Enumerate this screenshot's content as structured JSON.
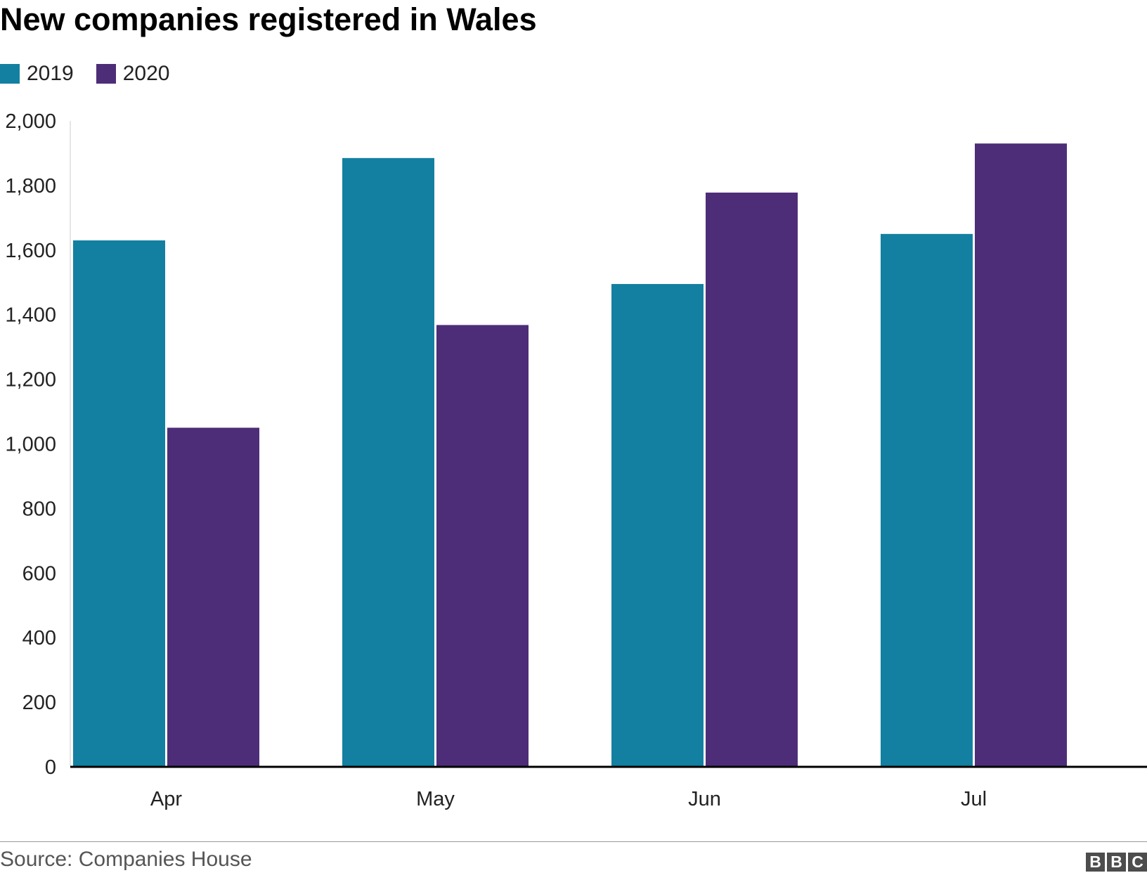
{
  "chart_data": {
    "type": "bar",
    "title": "New companies registered in Wales",
    "xlabel": "",
    "ylabel": "",
    "categories": [
      "Apr",
      "May",
      "Jun",
      "Jul"
    ],
    "series": [
      {
        "name": "2019",
        "color": "#1380a1",
        "values": [
          1630,
          1885,
          1495,
          1650
        ]
      },
      {
        "name": "2020",
        "color": "#4d2d78",
        "values": [
          1050,
          1368,
          1778,
          1930
        ]
      }
    ],
    "ylim": [
      0,
      2000
    ],
    "yticks": [
      0,
      200,
      400,
      600,
      800,
      1000,
      1200,
      1400,
      1600,
      1800,
      2000
    ],
    "ytick_labels": [
      "0",
      "200",
      "400",
      "600",
      "800",
      "1,000",
      "1,200",
      "1,400",
      "1,600",
      "1,800",
      "2,000"
    ],
    "grid": false,
    "legend_position": "top-left"
  },
  "source": "Source: Companies House",
  "logo": "BBC"
}
